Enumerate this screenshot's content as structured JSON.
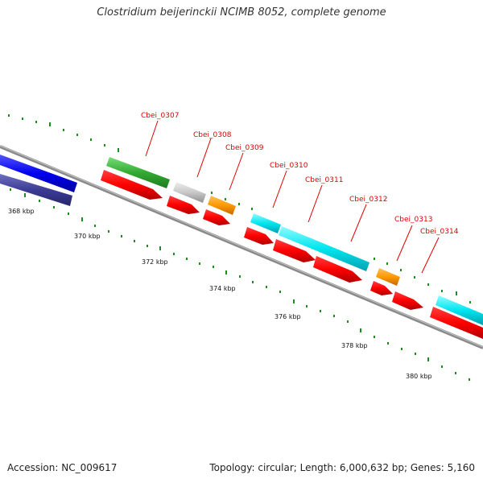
{
  "title": "Clostridium beijerinckii NCIMB 8052, complete genome",
  "footer": {
    "accession": "Accession: NC_009617",
    "summary": "Topology: circular; Length: 6,000,632 bp; Genes: 5,160"
  },
  "scale_labels": [
    "368 kbp",
    "370 kbp",
    "372 kbp",
    "374 kbp",
    "376 kbp",
    "378 kbp",
    "380 kbp"
  ],
  "gene_labels": [
    "Cbei_0307",
    "Cbei_0308",
    "Cbei_0309",
    "Cbei_0310",
    "Cbei_0311",
    "Cbei_0312",
    "Cbei_0313",
    "Cbei_0314"
  ],
  "colors": {
    "cds_red": "#ff0000",
    "cyan": "#00e5ee",
    "green": "#33aa33",
    "grey": "#c8c8c8",
    "orange": "#ff9900",
    "blue": "#0000ee",
    "navy": "#3c3c96",
    "backbone": "#8a8a8a",
    "tick": "#1e8c1e",
    "label": "#e00000"
  }
}
